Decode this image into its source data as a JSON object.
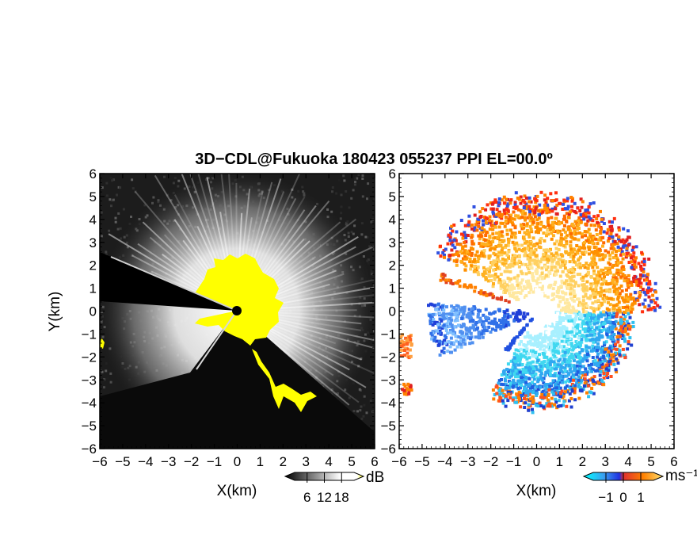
{
  "figure": {
    "title": "3D−CDL@Fukuoka 180423 055237 PPI EL=00.0º"
  },
  "chart_data": [
    {
      "type": "heatmap",
      "panel": "left",
      "xlabel": "X(km)",
      "ylabel": "Y(km)",
      "xlim": [
        -6,
        6
      ],
      "ylim": [
        -6,
        6
      ],
      "x_ticks": [
        "−6",
        "−5",
        "−4",
        "−3",
        "−2",
        "−1",
        "0",
        "1",
        "2",
        "3",
        "4",
        "5",
        "6"
      ],
      "y_ticks": [
        "−6",
        "−5",
        "−4",
        "−3",
        "−2",
        "−1",
        "0",
        "1",
        "2",
        "3",
        "4",
        "5",
        "6"
      ],
      "colorbar": {
        "unit": "dB",
        "tick_labels": [
          "6",
          "12",
          "18"
        ],
        "tick_values": [
          6,
          12,
          18
        ],
        "range": [
          0,
          24
        ],
        "colors": [
          "#000000",
          "#ffffff",
          "#ffff00"
        ]
      },
      "grid": false
    },
    {
      "type": "heatmap",
      "panel": "right",
      "xlabel": "X(km)",
      "ylabel": "",
      "xlim": [
        -6,
        6
      ],
      "ylim": [
        -6,
        6
      ],
      "x_ticks": [
        "−6",
        "−5",
        "−4",
        "−3",
        "−2",
        "−1",
        "0",
        "1",
        "2",
        "3",
        "4",
        "5",
        "6"
      ],
      "y_ticks": [
        "−6",
        "−5",
        "−4",
        "−3",
        "−2",
        "−1",
        "0",
        "1",
        "2",
        "3",
        "4",
        "5",
        "6"
      ],
      "colorbar": {
        "unit": "ms⁻¹",
        "tick_labels": [
          "−1",
          "0",
          "1"
        ],
        "tick_values": [
          -1,
          0,
          1
        ],
        "range": [
          -2,
          2
        ],
        "colors": [
          "#00c8e6",
          "#3050e0",
          "#ffffff",
          "#ff8000",
          "#ff2000"
        ]
      },
      "grid": false
    }
  ]
}
